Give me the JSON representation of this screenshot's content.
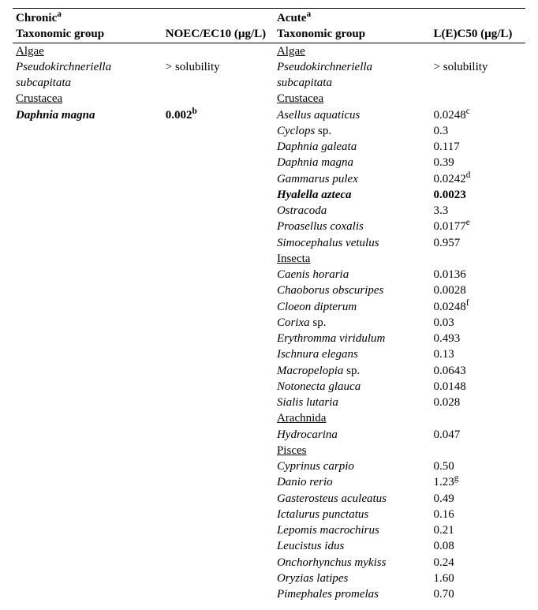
{
  "header": {
    "chronic": "Chronic",
    "chronic_sup": "a",
    "acute": "Acute",
    "acute_sup": "a",
    "tax_group": "Taxonomic group",
    "chronic_metric": "NOEC/EC10 (µg/L)",
    "acute_metric": "L(E)C50 (µg/L)"
  },
  "left": {
    "algae": "Algae",
    "pseudo1": "Pseudokirchneriella",
    "pseudo2": "subcapitata",
    "sol": "> solubility",
    "crust": "Crustacea",
    "dmagna": "Daphnia magna",
    "dmagna_val": "0.002",
    "dmagna_sup": "b"
  },
  "right": [
    {
      "tax": "Algae",
      "val": "",
      "u": true
    },
    {
      "tax": "Pseudokirchneriella",
      "val": "> solubility",
      "i": true,
      "cont": "subcapitata"
    },
    {
      "tax": "Crustacea",
      "val": "",
      "u": true
    },
    {
      "tax": "Asellus aquaticus",
      "val": "0.0248",
      "i": true,
      "sup": "c"
    },
    {
      "tax": "Cyclops",
      "post": " sp.",
      "val": "0.3",
      "i": true
    },
    {
      "tax": "Daphnia galeata",
      "val": "0.117",
      "i": true
    },
    {
      "tax": "Daphnia magna",
      "val": "0.39",
      "i": true
    },
    {
      "tax": "Gammarus pulex",
      "val": "0.0242",
      "i": true,
      "sup": "d"
    },
    {
      "tax": "Hyalella azteca",
      "val": "0.0023",
      "bi": true,
      "vb": true
    },
    {
      "tax": "Ostracoda",
      "val": "3.3",
      "i": true
    },
    {
      "tax": "Proasellus coxalis",
      "val": "0.0177",
      "i": true,
      "sup": "e"
    },
    {
      "tax": "Simocephalus vetulus",
      "val": "0.957",
      "i": true
    },
    {
      "tax": "Insecta",
      "val": "",
      "u": true
    },
    {
      "tax": "Caenis horaria",
      "val": "0.0136",
      "i": true
    },
    {
      "tax": "Chaoborus obscuripes",
      "val": "0.0028",
      "i": true
    },
    {
      "tax": "Cloeon dipterum",
      "val": "0.0248",
      "i": true,
      "sup": "f"
    },
    {
      "tax": "Corixa",
      "post": " sp.",
      "val": "0.03",
      "i": true
    },
    {
      "tax": "Erythromma viridulum",
      "val": "0.493",
      "i": true
    },
    {
      "tax": "Ischnura elegans",
      "val": "0.13",
      "i": true
    },
    {
      "tax": "Macropelopia",
      "post": " sp.",
      "val": "0.0643",
      "i": true
    },
    {
      "tax": "Notonecta glauca",
      "val": "0.0148",
      "i": true
    },
    {
      "tax": "Sialis lutaria",
      "val": "0.028",
      "i": true
    },
    {
      "tax": "Arachnida",
      "val": "",
      "u": true
    },
    {
      "tax": "Hydrocarina",
      "val": "0.047",
      "i": true
    },
    {
      "tax": "Pisces",
      "val": "",
      "u": true
    },
    {
      "tax": "Cyprinus carpio",
      "val": "0.50",
      "i": true
    },
    {
      "tax": "Danio rerio",
      "val": "1.23",
      "i": true,
      "sup": "g"
    },
    {
      "tax": "Gasterosteus aculeatus",
      "val": "0.49",
      "i": true
    },
    {
      "tax": "Ictalurus punctatus",
      "val": "0.16",
      "i": true
    },
    {
      "tax": "Lepomis macrochirus",
      "val": "0.21",
      "i": true
    },
    {
      "tax": "Leucistus idus",
      "val": "0.08",
      "i": true
    },
    {
      "tax": "Onchorhynchus mykiss",
      "val": "0.24",
      "i": true
    },
    {
      "tax": "Oryzias latipes",
      "val": "1.60",
      "i": true
    },
    {
      "tax": "Pimephales promelas",
      "val": "0.70",
      "i": true
    }
  ]
}
